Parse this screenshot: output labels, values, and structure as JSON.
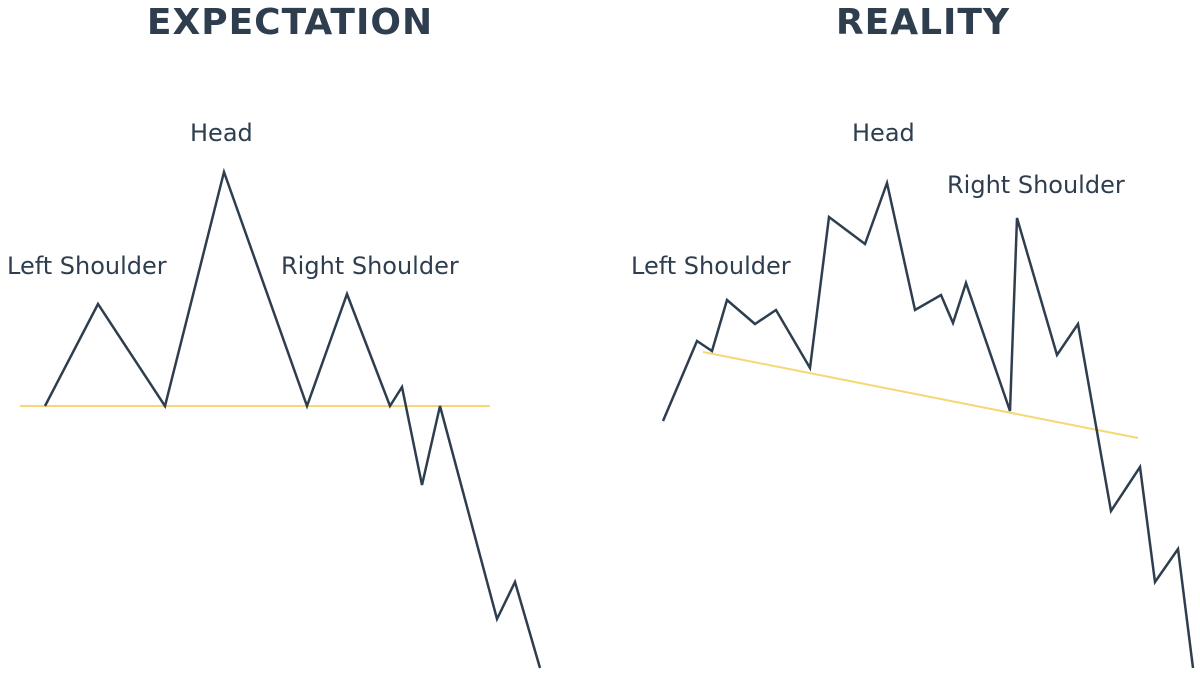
{
  "panels": {
    "expectation": {
      "title": "EXPECTATION",
      "labels": {
        "left_shoulder": "Left Shoulder",
        "head": "Head",
        "right_shoulder": "Right Shoulder"
      }
    },
    "reality": {
      "title": "REALITY",
      "labels": {
        "left_shoulder": "Left Shoulder",
        "head": "Head",
        "right_shoulder": "Right Shoulder"
      }
    }
  },
  "colors": {
    "price_line": "#2e3e4f",
    "neckline": "#f7d774",
    "text": "#2e3e4f"
  }
}
